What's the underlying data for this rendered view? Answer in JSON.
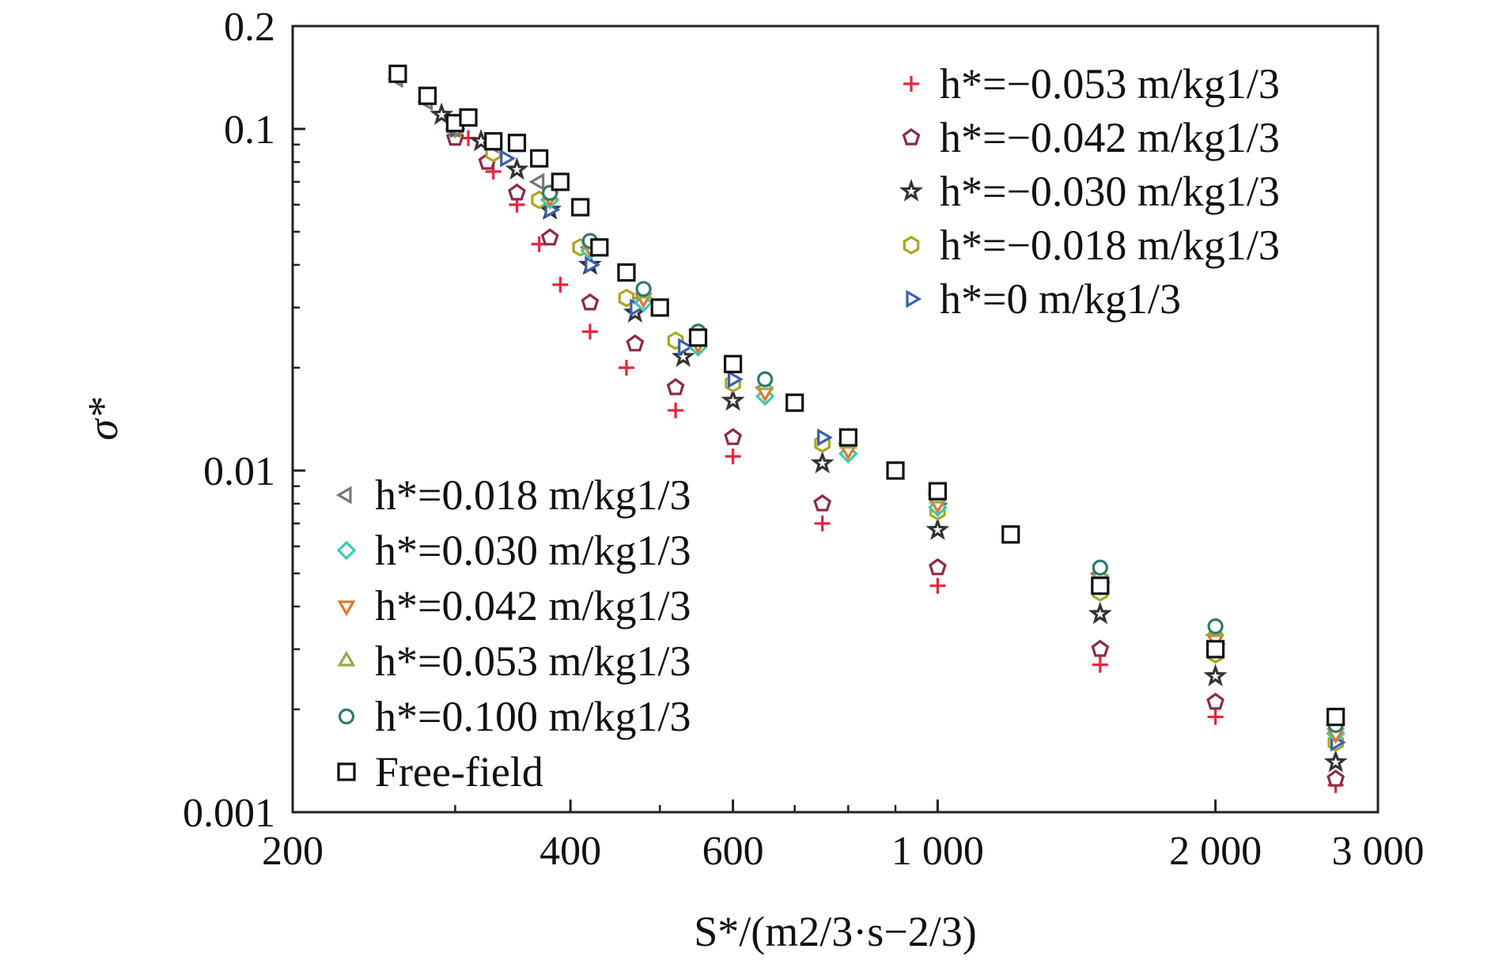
{
  "chart_data": {
    "type": "scatter",
    "xscale": "log",
    "yscale": "log",
    "xlim": [
      200,
      3000
    ],
    "ylim": [
      0.001,
      0.2
    ],
    "grid": false,
    "xlabel": "S*/(m2/3·s−2/3)",
    "ylabel": "σ*",
    "x_ticks": [
      {
        "value": 200,
        "label": "200"
      },
      {
        "value": 400,
        "label": "400"
      },
      {
        "value": 600,
        "label": "600"
      },
      {
        "value": 1000,
        "label": "1 000"
      },
      {
        "value": 2000,
        "label": "2 000"
      },
      {
        "value": 3000,
        "label": "3 000"
      }
    ],
    "y_ticks": [
      {
        "value": 0.001,
        "label": "0.001"
      },
      {
        "value": 0.01,
        "label": "0.01"
      },
      {
        "value": 0.1,
        "label": "0.1"
      },
      {
        "value": 0.2,
        "label": "0.2"
      }
    ],
    "legend_top_right": [
      0,
      1,
      2,
      3,
      4
    ],
    "legend_bottom_left": [
      5,
      6,
      7,
      8,
      9,
      10
    ],
    "series": [
      {
        "name": "h*=−0.053 m/kg1/3",
        "marker": "plus",
        "color": "#e8243c",
        "x": [
          310,
          330,
          350,
          370,
          390,
          420,
          460,
          520,
          600,
          750,
          1000,
          1500,
          2000,
          2700
        ],
        "y": [
          0.094,
          0.075,
          0.06,
          0.046,
          0.035,
          0.0255,
          0.02,
          0.015,
          0.011,
          0.007,
          0.0046,
          0.0027,
          0.0019,
          0.0012
        ]
      },
      {
        "name": "h*=−0.042 m/kg1/3",
        "marker": "pentagon",
        "color": "#8b2a4a",
        "x": [
          300,
          325,
          350,
          380,
          420,
          470,
          520,
          600,
          750,
          1000,
          1500,
          2000,
          2700
        ],
        "y": [
          0.094,
          0.08,
          0.065,
          0.048,
          0.031,
          0.0235,
          0.0175,
          0.0125,
          0.008,
          0.0052,
          0.003,
          0.0021,
          0.00125
        ]
      },
      {
        "name": "h*=−0.030 m/kg1/3",
        "marker": "star",
        "color": "#333333",
        "x": [
          290,
          320,
          350,
          380,
          420,
          470,
          530,
          600,
          750,
          1000,
          1500,
          2000,
          2700
        ],
        "y": [
          0.11,
          0.092,
          0.076,
          0.058,
          0.04,
          0.029,
          0.0215,
          0.016,
          0.0105,
          0.0067,
          0.0038,
          0.0025,
          0.0014
        ]
      },
      {
        "name": "h*=−0.018 m/kg1/3",
        "marker": "hexagon",
        "color": "#a8a81e",
        "x": [
          300,
          330,
          370,
          410,
          460,
          520,
          600,
          750,
          1000,
          1500,
          2000,
          2700
        ],
        "y": [
          0.1,
          0.085,
          0.062,
          0.045,
          0.032,
          0.024,
          0.018,
          0.012,
          0.0076,
          0.0044,
          0.0029,
          0.0016
        ]
      },
      {
        "name": "h*=0 m/kg1/3",
        "marker": "triangle-right",
        "color": "#3a5fb0",
        "x": [
          300,
          340,
          380,
          420,
          470,
          530,
          600,
          750,
          1000,
          1500,
          2000,
          2700
        ],
        "y": [
          0.1,
          0.082,
          0.058,
          0.04,
          0.03,
          0.023,
          0.0185,
          0.0125,
          0.008,
          0.0047,
          0.0031,
          0.0016
        ]
      },
      {
        "name": "h*=0.018 m/kg1/3",
        "marker": "triangle-left",
        "color": "#777777",
        "x": [
          260,
          280,
          300,
          330,
          370,
          420,
          480,
          550,
          650,
          800,
          1000,
          1500,
          2000,
          2700
        ],
        "y": [
          0.14,
          0.12,
          0.1,
          0.09,
          0.07,
          0.045,
          0.032,
          0.024,
          0.0175,
          0.012,
          0.0085,
          0.005,
          0.0033,
          0.0018
        ]
      },
      {
        "name": "h*=0.030 m/kg1/3",
        "marker": "diamond",
        "color": "#3ec8b4",
        "x": [
          380,
          420,
          480,
          550,
          650,
          800,
          1000,
          1500,
          2000,
          2700
        ],
        "y": [
          0.062,
          0.044,
          0.031,
          0.023,
          0.0165,
          0.0112,
          0.0078,
          0.0046,
          0.0031,
          0.0017
        ]
      },
      {
        "name": "h*=0.042 m/kg1/3",
        "marker": "triangle-down",
        "color": "#e0782a",
        "x": [
          380,
          420,
          480,
          550,
          650,
          800,
          1000,
          1500,
          2000,
          2700
        ],
        "y": [
          0.063,
          0.045,
          0.032,
          0.0235,
          0.017,
          0.0115,
          0.008,
          0.0048,
          0.0032,
          0.0017
        ]
      },
      {
        "name": "h*=0.053 m/kg1/3",
        "marker": "triangle-up",
        "color": "#9aa84a",
        "x": [
          380,
          420,
          480,
          550,
          650,
          800,
          1000,
          1500,
          2000,
          2700
        ],
        "y": [
          0.064,
          0.046,
          0.033,
          0.0245,
          0.0178,
          0.012,
          0.0083,
          0.005,
          0.0034,
          0.0018
        ]
      },
      {
        "name": "h*=0.100 m/kg1/3",
        "marker": "circle",
        "color": "#2d7a70",
        "x": [
          380,
          420,
          480,
          550,
          650,
          800,
          1000,
          1500,
          2000,
          2700
        ],
        "y": [
          0.065,
          0.047,
          0.034,
          0.0255,
          0.0185,
          0.0125,
          0.0087,
          0.0052,
          0.0035,
          0.0018
        ]
      },
      {
        "name": "Free-field",
        "marker": "square",
        "color": "#111111",
        "x": [
          260,
          280,
          300,
          310,
          330,
          350,
          370,
          390,
          410,
          430,
          460,
          500,
          550,
          600,
          700,
          800,
          900,
          1000,
          1200,
          1500,
          2000,
          2700
        ],
        "y": [
          0.145,
          0.125,
          0.104,
          0.108,
          0.092,
          0.091,
          0.082,
          0.07,
          0.059,
          0.045,
          0.038,
          0.03,
          0.0245,
          0.0205,
          0.0158,
          0.0125,
          0.01,
          0.0087,
          0.0065,
          0.0046,
          0.003,
          0.0019
        ]
      }
    ]
  }
}
